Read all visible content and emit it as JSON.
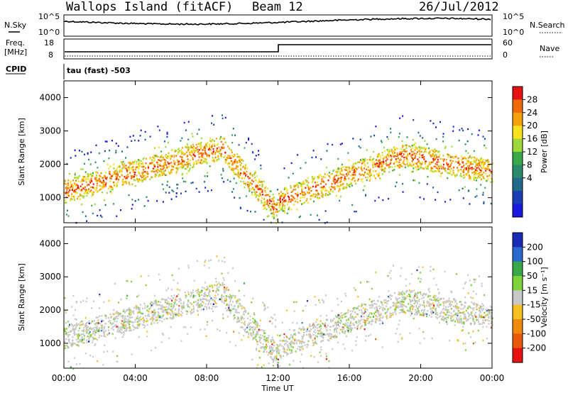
{
  "header": {
    "site": "Wallops Island (fitACF)",
    "beam": "Beam 12",
    "date": "26/Jul/2012"
  },
  "top_panels": {
    "nsky_label": "N.Sky",
    "nsky_ticks": [
      "10^5",
      "10^0"
    ],
    "nsearch_label": "N.Search",
    "nsearch_ticks": [
      "10^5",
      "10^0"
    ],
    "freq_label_1": "Freq.",
    "freq_label_2": "[MHz]",
    "freq_ticks": [
      "18",
      "8"
    ],
    "nave_label": "Nave",
    "nave_ticks": [
      "60",
      "0"
    ],
    "cpid_label": "CPID",
    "cpid_text": "tau (fast) -503"
  },
  "chart_data": [
    {
      "type": "heatmap",
      "name": "power",
      "ylabel": "Slant Range [km]",
      "xlabel": "",
      "y_ticks": [
        "1000",
        "2000",
        "3000",
        "4000"
      ],
      "x_ticks": [
        "00:00",
        "04:00",
        "08:00",
        "12:00",
        "16:00",
        "20:00",
        "00:00"
      ],
      "ylim": [
        250,
        4500
      ],
      "xlim_hours": [
        0,
        24
      ],
      "colorbar_label": "Power [dB]",
      "colorbar_ticks": [
        "28",
        "24",
        "20",
        "16",
        "12",
        "8",
        "4"
      ],
      "colorbar_colors": [
        "#e61212",
        "#f06a0c",
        "#f5a20a",
        "#f7e21c",
        "#9ed83a",
        "#3aa84a",
        "#2a8a6a",
        "#216a8a",
        "#1a3cb4",
        "#1a1ae0"
      ]
    },
    {
      "type": "heatmap",
      "name": "velocity",
      "ylabel": "Slant Range [km]",
      "xlabel": "Time UT",
      "y_ticks": [
        "1000",
        "2000",
        "3000",
        "4000"
      ],
      "x_ticks": [
        "00:00",
        "04:00",
        "08:00",
        "12:00",
        "16:00",
        "20:00",
        "00:00"
      ],
      "ylim": [
        250,
        4500
      ],
      "xlim_hours": [
        0,
        24
      ],
      "colorbar_label": "Velocity [m s⁻¹]",
      "colorbar_ticks": [
        "200",
        "100",
        "50",
        "15",
        "-15",
        "-50",
        "-100",
        "-200"
      ],
      "colorbar_colors": [
        "#1a2ab4",
        "#2a6ad0",
        "#3aa84a",
        "#7ed23a",
        "#c8c8c8",
        "#f5c020",
        "#f08a0c",
        "#e85a0a",
        "#e61212"
      ]
    }
  ]
}
